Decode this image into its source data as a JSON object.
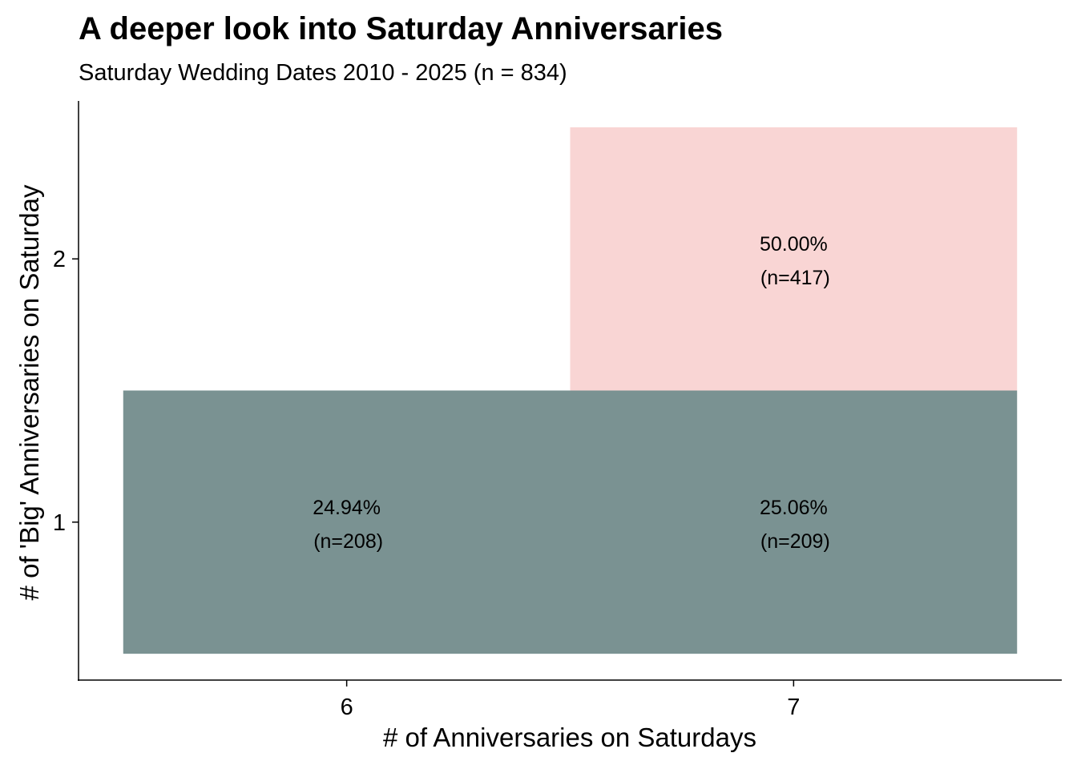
{
  "chart_data": {
    "type": "heatmap",
    "title": "A deeper look into Saturday Anniversaries",
    "subtitle": "Saturday Wedding Dates 2010 - 2025 (n = 834)",
    "xlabel": "# of Anniversaries on Saturdays",
    "ylabel": "# of 'Big' Anniversaries on Saturday",
    "x_ticks": [
      "6",
      "7"
    ],
    "y_ticks": [
      "1",
      "2"
    ],
    "xlim": [
      5.4,
      7.6
    ],
    "ylim": [
      0.4,
      2.6
    ],
    "grid": false,
    "legend": "none",
    "colors": {
      "low": "#7a9292",
      "high": "#f9d5d4"
    },
    "cells": [
      {
        "x": 6,
        "y": 1,
        "percent_label": "24.94%",
        "n_label": "(n=208)",
        "percent": 24.94,
        "n": 208,
        "color": "#7a9292"
      },
      {
        "x": 7,
        "y": 1,
        "percent_label": "25.06%",
        "n_label": "(n=209)",
        "percent": 25.06,
        "n": 209,
        "color": "#7a9292"
      },
      {
        "x": 7,
        "y": 2,
        "percent_label": "50.00%",
        "n_label": "(n=417)",
        "percent": 50.0,
        "n": 417,
        "color": "#f9d5d4"
      }
    ]
  }
}
